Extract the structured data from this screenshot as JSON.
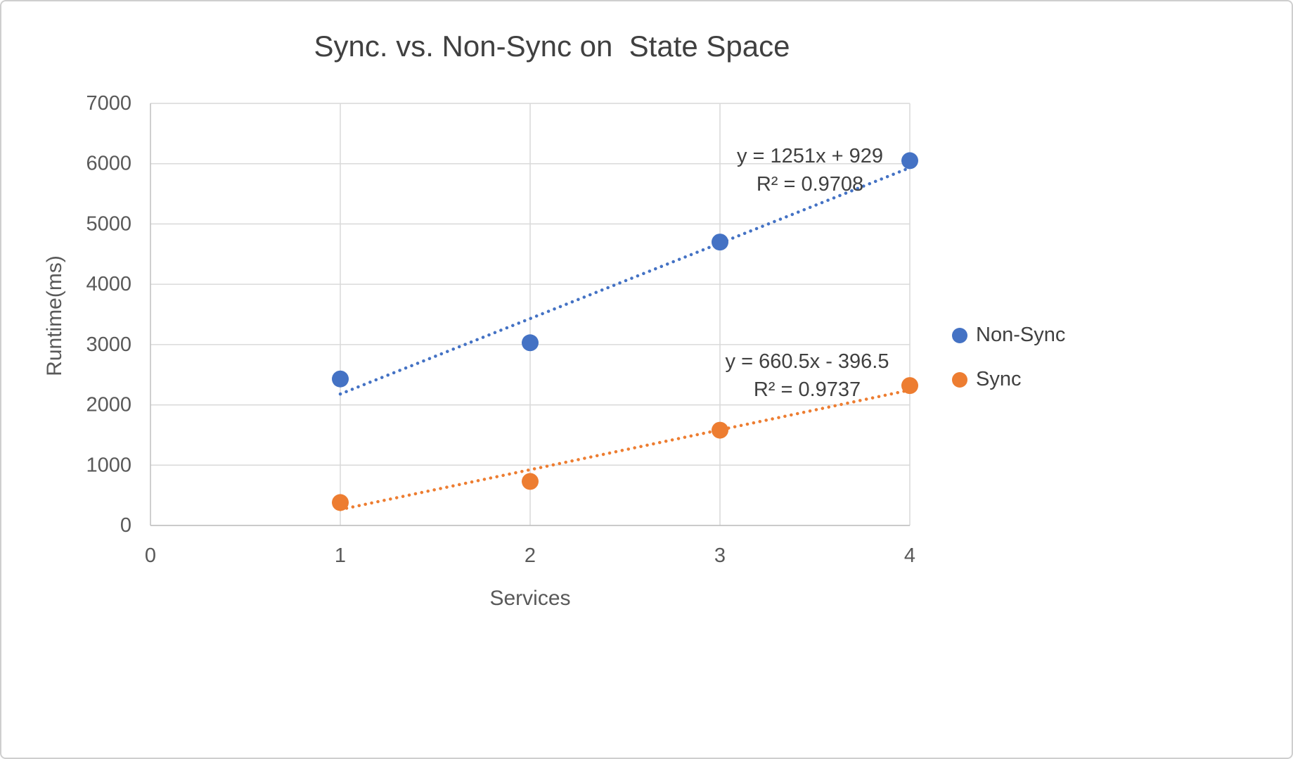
{
  "window": {
    "background": "#ffffff",
    "border_color": "#cfcfcf"
  },
  "chart_data": {
    "type": "scatter",
    "title": "Sync. vs. Non-Sync on  State Space",
    "xlabel": "Services",
    "ylabel": "Runtime(ms)",
    "xlim": [
      0,
      4
    ],
    "ylim": [
      0,
      7000
    ],
    "x_ticks": [
      0,
      1,
      2,
      3,
      4
    ],
    "y_ticks": [
      0,
      1000,
      2000,
      3000,
      4000,
      5000,
      6000,
      7000
    ],
    "grid": true,
    "legend_position": "right",
    "colors": {
      "grid": "#D9D9D9",
      "axis_line": "#BFBFBF",
      "axis_text": "#595959",
      "title_text": "#404040"
    },
    "series": [
      {
        "name": "Non-Sync",
        "color": "#4472C4",
        "x": [
          1,
          2,
          3,
          4
        ],
        "y": [
          2430,
          3030,
          4700,
          6050
        ],
        "trendline": {
          "style": "dotted",
          "slope": 1251,
          "intercept": 929,
          "x_range": [
            1,
            4
          ],
          "equation": "y = 1251x + 929",
          "r2_label": "R² = 0.9708"
        }
      },
      {
        "name": "Sync",
        "color": "#ED7D31",
        "x": [
          1,
          2,
          3,
          4
        ],
        "y": [
          380,
          730,
          1580,
          2320
        ],
        "trendline": {
          "style": "dotted",
          "slope": 660.5,
          "intercept": -396.5,
          "x_range": [
            1,
            4
          ],
          "equation": "y = 660.5x - 396.5",
          "r2_label": "R² = 0.9737"
        }
      }
    ]
  }
}
